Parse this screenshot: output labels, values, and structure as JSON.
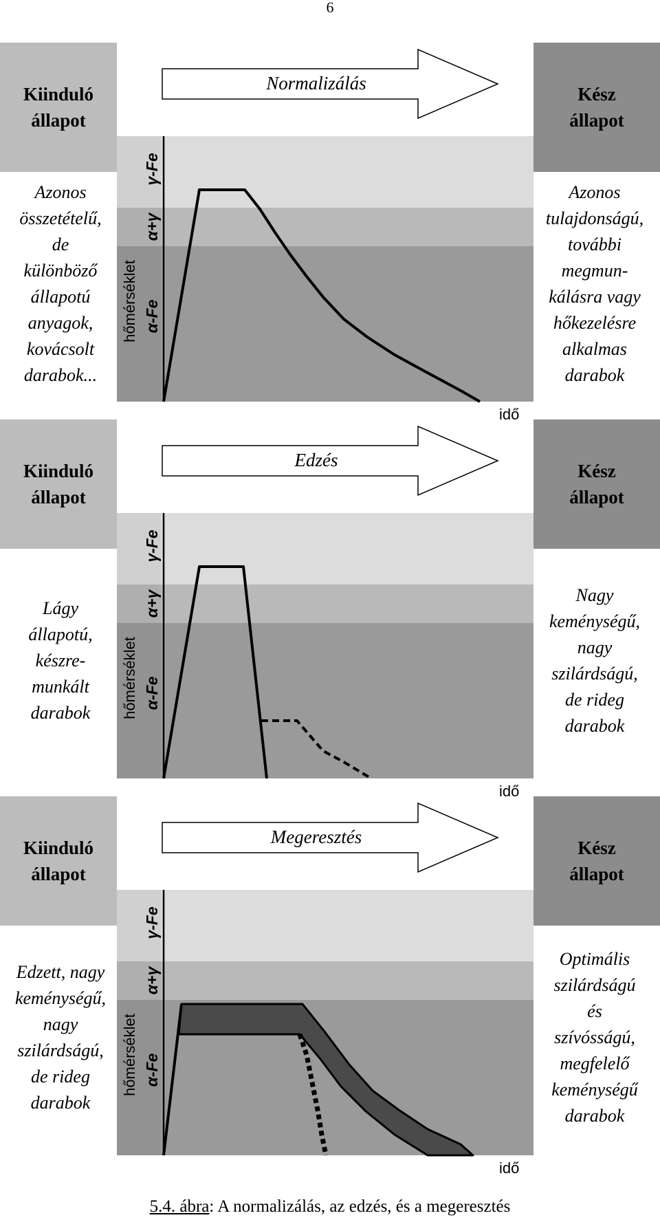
{
  "page_number": "6",
  "axis": {
    "ylabel": "hőmérséklet",
    "xlabel": "idő",
    "phase_top": "γ-Fe",
    "phase_mid": "α+γ",
    "phase_low": "α-Fe"
  },
  "start_state": "Kiinduló\nállapot",
  "end_state": "Kész\nállapot",
  "colors": {
    "start_box": "#bcbcbc",
    "end_box": "#8c8c8c",
    "zone_gamma": "#dcdcdc",
    "zone_two_phase": "#b9b9b9",
    "zone_alpha": "#9a9a9a",
    "band": "#4a4a4a",
    "curve": "#000000"
  },
  "panels": [
    {
      "process": "Normalizálás",
      "left_text": "Azonos\nösszetételű,\nde\nkülönböző\nállapotú\nanyagok,\nkovácsolt\ndarabok...",
      "right_text": "Azonos\ntulajdonságú,\ntovábbi\nmegmun-\nkálásra vagy\nhőkezelésre\nalkalmas\ndarabok"
    },
    {
      "process": "Edzés",
      "left_text": "Lágy\nállapotú,\nkészre-\nmunkált\ndarabok",
      "right_text": "Nagy\nkeménységű,\nnagy\nszilárdságú,\nde rideg\ndarabok"
    },
    {
      "process": "Megeresztés",
      "left_text": "Edzett, nagy\nkeménységű,\nnagy\nszilárdságú,\nde rideg\ndarabok",
      "right_text": "Optimális\nszilárdságú\nés\nszívósságú,\nmegfelelő\nkeménységű\ndarabok"
    }
  ],
  "caption": {
    "ref": "5.4. ábra",
    "text": ": A normalizálás, az edzés, és a megeresztés"
  }
}
